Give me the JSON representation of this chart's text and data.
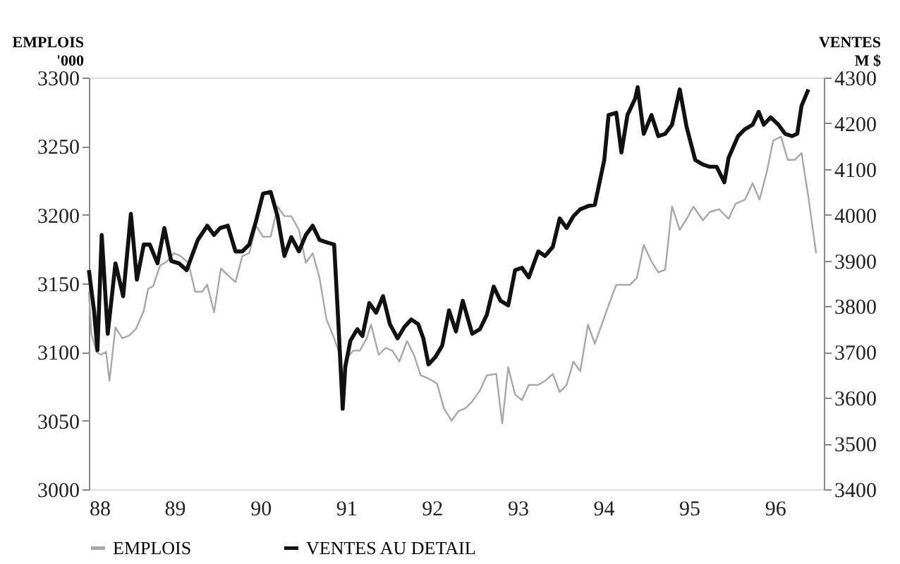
{
  "chart_data": {
    "type": "line",
    "ylabel": "EMPLOIS\n'000",
    "y2label": "VENTES\nM $",
    "xlim": [
      1988,
      1996.57
    ],
    "xticks": [
      {
        "value": 1988,
        "label": "88"
      },
      {
        "value": 1989,
        "label": "89"
      },
      {
        "value": 1990,
        "label": "90"
      },
      {
        "value": 1991,
        "label": "91"
      },
      {
        "value": 1992,
        "label": "92"
      },
      {
        "value": 1993,
        "label": "93"
      },
      {
        "value": 1994,
        "label": "94"
      },
      {
        "value": 1995,
        "label": "95"
      },
      {
        "value": 1996,
        "label": "96"
      }
    ],
    "ylim": [
      3000,
      3300
    ],
    "yticks": [
      3000,
      3050,
      3100,
      3150,
      3200,
      3250,
      3300
    ],
    "y2lim": [
      3400,
      4300
    ],
    "y2ticks": [
      3400,
      3500,
      3600,
      3700,
      3800,
      3900,
      4000,
      4100,
      4200,
      4300
    ],
    "grid": false,
    "legend": "bottom",
    "marker": "none",
    "line_style": "solid",
    "series": [
      {
        "name": "EMPLOIS",
        "color": "#a8a8a8",
        "x": [
          1988.0,
          1988.03,
          1988.09,
          1988.14,
          1988.2,
          1988.24,
          1988.31,
          1988.39,
          1988.47,
          1988.55,
          1988.64,
          1988.69,
          1988.75,
          1988.83,
          1988.91,
          1988.99,
          1989.07,
          1989.16,
          1989.24,
          1989.32,
          1989.38,
          1989.46,
          1989.54,
          1989.62,
          1989.71,
          1989.79,
          1989.87,
          1989.95,
          1990.03,
          1990.12,
          1990.2,
          1990.28,
          1990.36,
          1990.45,
          1990.53,
          1990.61,
          1990.69,
          1990.77,
          1990.86,
          1990.91,
          1990.97,
          1991.02,
          1991.08,
          1991.16,
          1991.24,
          1991.29,
          1991.38,
          1991.46,
          1991.54,
          1991.62,
          1991.71,
          1991.79,
          1991.87,
          1991.95,
          1992.06,
          1992.14,
          1992.23,
          1992.31,
          1992.39,
          1992.47,
          1992.56,
          1992.64,
          1992.75,
          1992.82,
          1992.89,
          1992.97,
          1993.05,
          1993.13,
          1993.24,
          1993.32,
          1993.41,
          1993.49,
          1993.57,
          1993.65,
          1993.73,
          1993.82,
          1993.9,
          1993.98,
          1994.06,
          1994.15,
          1994.23,
          1994.31,
          1994.39,
          1994.47,
          1994.56,
          1994.64,
          1994.72,
          1994.8,
          1994.89,
          1994.97,
          1995.05,
          1995.16,
          1995.24,
          1995.35,
          1995.46,
          1995.54,
          1995.65,
          1995.74,
          1995.82,
          1995.9,
          1995.98,
          1996.07,
          1996.15,
          1996.23,
          1996.31,
          1996.39,
          1996.48
        ],
        "values": [
          3144,
          3113,
          3100,
          3098,
          3100,
          3079,
          3118,
          3110,
          3112,
          3117,
          3130,
          3146,
          3148,
          3163,
          3166,
          3172,
          3170,
          3165,
          3144,
          3144,
          3149,
          3129,
          3161,
          3156,
          3151,
          3170,
          3172,
          3192,
          3184,
          3184,
          3206,
          3199,
          3199,
          3189,
          3165,
          3172,
          3154,
          3124,
          3110,
          3101,
          3076,
          3096,
          3101,
          3101,
          3110,
          3120,
          3098,
          3103,
          3101,
          3093,
          3108,
          3098,
          3083,
          3081,
          3077,
          3059,
          3050,
          3057,
          3059,
          3064,
          3072,
          3083,
          3084,
          3048,
          3089,
          3069,
          3065,
          3076,
          3076,
          3079,
          3084,
          3071,
          3076,
          3093,
          3086,
          3120,
          3106,
          3120,
          3134,
          3149,
          3149,
          3149,
          3154,
          3178,
          3166,
          3158,
          3160,
          3206,
          3189,
          3197,
          3206,
          3196,
          3202,
          3204,
          3197,
          3208,
          3211,
          3223,
          3211,
          3230,
          3254,
          3257,
          3240,
          3240,
          3245,
          3213,
          3172
        ]
      },
      {
        "name": "VENTES AU DETAIL",
        "color": "#111111",
        "axis": "y2",
        "x": [
          1988.0,
          1988.06,
          1988.1,
          1988.15,
          1988.22,
          1988.31,
          1988.4,
          1988.49,
          1988.56,
          1988.64,
          1988.71,
          1988.8,
          1988.88,
          1988.96,
          1989.05,
          1989.14,
          1989.27,
          1989.38,
          1989.46,
          1989.53,
          1989.62,
          1989.71,
          1989.79,
          1989.87,
          1989.95,
          1990.03,
          1990.12,
          1990.2,
          1990.28,
          1990.36,
          1990.45,
          1990.53,
          1990.61,
          1990.69,
          1990.77,
          1990.86,
          1990.91,
          1990.96,
          1990.99,
          1991.05,
          1991.13,
          1991.19,
          1991.27,
          1991.35,
          1991.43,
          1991.51,
          1991.6,
          1991.68,
          1991.76,
          1991.84,
          1991.9,
          1991.96,
          1992.04,
          1992.12,
          1992.2,
          1992.28,
          1992.36,
          1992.47,
          1992.56,
          1992.64,
          1992.72,
          1992.8,
          1992.89,
          1992.97,
          1993.05,
          1993.13,
          1993.24,
          1993.32,
          1993.41,
          1993.49,
          1993.57,
          1993.65,
          1993.73,
          1993.82,
          1993.9,
          1994.01,
          1994.06,
          1994.15,
          1994.21,
          1994.28,
          1994.37,
          1994.4,
          1994.47,
          1994.56,
          1994.64,
          1994.72,
          1994.8,
          1994.89,
          1994.97,
          1995.07,
          1995.16,
          1995.24,
          1995.32,
          1995.41,
          1995.46,
          1995.57,
          1995.65,
          1995.74,
          1995.81,
          1995.87,
          1995.95,
          1996.04,
          1996.12,
          1996.2,
          1996.26,
          1996.31,
          1996.39
        ],
        "values": [
          3879,
          3791,
          3704,
          3956,
          3740,
          3894,
          3822,
          4002,
          3858,
          3935,
          3935,
          3894,
          3971,
          3899,
          3894,
          3879,
          3945,
          3976,
          3956,
          3971,
          3976,
          3920,
          3920,
          3935,
          3987,
          4046,
          4050,
          3997,
          3910,
          3951,
          3920,
          3956,
          3976,
          3945,
          3940,
          3935,
          3761,
          3576,
          3668,
          3725,
          3750,
          3735,
          3807,
          3786,
          3822,
          3761,
          3730,
          3755,
          3771,
          3761,
          3730,
          3673,
          3689,
          3714,
          3791,
          3745,
          3812,
          3740,
          3750,
          3781,
          3843,
          3812,
          3802,
          3879,
          3884,
          3863,
          3920,
          3910,
          3930,
          3992,
          3971,
          3997,
          4012,
          4019,
          4022,
          4120,
          4218,
          4223,
          4136,
          4218,
          4254,
          4279,
          4177,
          4218,
          4172,
          4177,
          4197,
          4274,
          4192,
          4120,
          4110,
          4105,
          4105,
          4071,
          4125,
          4172,
          4187,
          4197,
          4225,
          4197,
          4213,
          4197,
          4177,
          4172,
          4177,
          4238,
          4274
        ]
      }
    ]
  }
}
